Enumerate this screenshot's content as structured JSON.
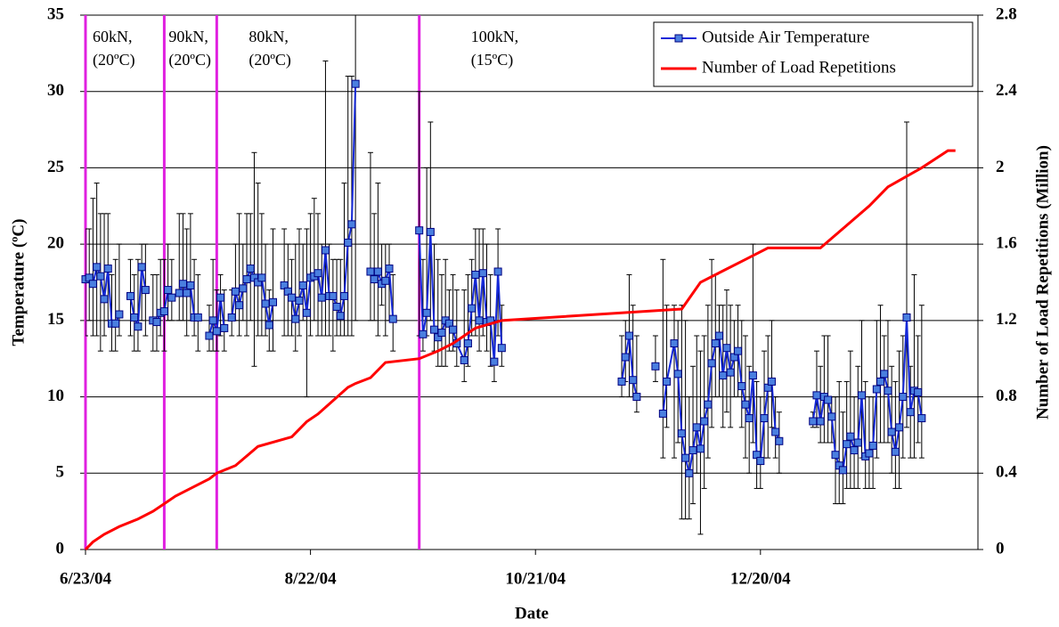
{
  "chart_data": {
    "type": "line",
    "xlabel": "Date",
    "ylabel": "Temperature (ºC)",
    "y2label": "Number of Load Repetitions (Million)",
    "xlim": [
      "6/23/04",
      "2/16/05"
    ],
    "xticks": [
      "6/23/04",
      "8/22/04",
      "10/21/04",
      "12/20/04"
    ],
    "ylim": [
      0,
      35
    ],
    "yticks": [
      0,
      5,
      10,
      15,
      20,
      25,
      30,
      35
    ],
    "y2lim": [
      0,
      2.8
    ],
    "y2ticks": [
      0,
      0.4,
      0.8,
      1.2,
      1.6,
      2,
      2.4,
      2.8
    ],
    "grid": true,
    "legend": "upper right",
    "annotations": [
      {
        "x": "6/23/04",
        "lines": [
          "60kN,",
          "(20ºC)"
        ]
      },
      {
        "x": "7/14/04",
        "lines": [
          "90kN,",
          "(20ºC)"
        ]
      },
      {
        "x": "7/28/04",
        "lines": [
          "80kN,",
          "(20ºC)"
        ]
      },
      {
        "x": "9/20/04",
        "lines": [
          "100kN,",
          "(15ºC)"
        ]
      }
    ],
    "annotation_color": "#e020e0",
    "series": [
      {
        "name": "Outside Air Temperature",
        "color": "#1428d8",
        "marker_color": "#4a7fe0",
        "error_color": "#000000",
        "x": [
          "6/23/04",
          "6/24/04",
          "6/25/04",
          "6/26/04",
          "6/27/04",
          "6/28/04",
          "6/29/04",
          "6/30/04",
          "7/1/04",
          "7/2/04",
          "7/3/04",
          "7/5/04",
          "7/6/04",
          "7/7/04",
          "7/8/04",
          "7/9/04",
          "7/10/04",
          "7/11/04",
          "7/12/04",
          "7/13/04",
          "7/14/04",
          "7/15/04",
          "7/16/04",
          "7/17/04",
          "7/18/04",
          "7/19/04",
          "7/20/04",
          "7/21/04",
          "7/22/04",
          "7/23/04",
          "7/24/04",
          "7/26/04",
          "7/27/04",
          "7/28/04",
          "7/29/04",
          "7/30/04",
          "7/31/04",
          "8/1/04",
          "8/2/04",
          "8/3/04",
          "8/4/04",
          "8/5/04",
          "8/6/04",
          "8/7/04",
          "8/8/04",
          "8/9/04",
          "8/10/04",
          "8/11/04",
          "8/12/04",
          "8/13/04",
          "8/15/04",
          "8/16/04",
          "8/17/04",
          "8/18/04",
          "8/19/04",
          "8/20/04",
          "8/21/04",
          "8/22/04",
          "8/23/04",
          "8/24/04",
          "8/25/04",
          "8/26/04",
          "8/27/04",
          "8/28/04",
          "8/29/04",
          "8/30/04",
          "8/31/04",
          "9/1/04",
          "9/2/04",
          "9/3/04",
          "9/4/04",
          "9/7/04",
          "9/8/04",
          "9/9/04",
          "9/10/04",
          "9/11/04",
          "9/12/04",
          "9/13/04",
          "9/14/04",
          "9/20/04",
          "9/21/04",
          "9/22/04",
          "9/23/04",
          "9/24/04",
          "9/25/04",
          "9/26/04",
          "9/27/04",
          "9/28/04",
          "9/29/04",
          "9/30/04",
          "10/2/04",
          "10/3/04",
          "10/4/04",
          "10/5/04",
          "10/6/04",
          "10/7/04",
          "10/8/04",
          "10/9/04",
          "10/10/04",
          "10/11/04",
          "10/12/04",
          "10/13/04",
          "11/13/04",
          "11/14/04",
          "11/15/04",
          "11/16/04",
          "11/17/04",
          "11/18/04",
          "11/22/04",
          "11/23/04",
          "11/24/04",
          "11/25/04",
          "11/27/04",
          "11/28/04",
          "11/29/04",
          "11/30/04",
          "12/1/04",
          "12/2/04",
          "12/3/04",
          "12/4/04",
          "12/5/04",
          "12/6/04",
          "12/7/04",
          "12/8/04",
          "12/9/04",
          "12/10/04",
          "12/11/04",
          "12/12/04",
          "12/13/04",
          "12/14/04",
          "12/15/04",
          "12/16/04",
          "12/17/04",
          "12/18/04",
          "12/19/04",
          "12/20/04",
          "12/21/04",
          "12/22/04",
          "12/23/04",
          "12/24/04",
          "12/25/04",
          "12/26/04",
          "1/3/05",
          "1/4/05",
          "1/5/05",
          "1/6/05",
          "1/7/05",
          "1/8/05",
          "1/9/05",
          "1/10/05",
          "1/11/05",
          "1/12/05",
          "1/13/05",
          "1/14/05",
          "1/15/05",
          "1/16/05",
          "1/17/05",
          "1/18/05",
          "1/19/05",
          "1/20/05",
          "1/21/05",
          "1/22/05",
          "1/23/05",
          "1/24/05",
          "1/25/05",
          "1/26/05",
          "1/27/05",
          "1/28/05",
          "1/29/05",
          "1/30/05",
          "1/31/05",
          "2/1/05"
        ],
        "values": [
          17.7,
          17.8,
          17.4,
          18.5,
          17.9,
          16.4,
          18.4,
          14.8,
          14.8,
          15.4,
          null,
          16.6,
          15.2,
          14.6,
          18.5,
          17.0,
          null,
          15.0,
          14.9,
          15.5,
          15.6,
          17.0,
          16.5,
          null,
          16.8,
          17.4,
          16.8,
          17.3,
          15.2,
          15.2,
          null,
          14.0,
          15.0,
          14.3,
          16.5,
          14.5,
          null,
          15.2,
          16.9,
          16.0,
          17.1,
          17.7,
          18.4,
          17.8,
          17.5,
          17.8,
          16.1,
          14.7,
          16.2,
          null,
          17.3,
          16.9,
          16.5,
          15.1,
          16.3,
          17.3,
          15.5,
          17.8,
          17.9,
          18.1,
          16.5,
          19.6,
          16.6,
          16.6,
          15.9,
          15.3,
          16.6,
          20.1,
          21.3,
          30.5,
          null,
          18.2,
          17.7,
          18.2,
          17.4,
          17.6,
          18.4,
          15.1,
          null,
          20.9,
          14.1,
          15.5,
          20.8,
          14.4,
          13.9,
          14.2,
          15.0,
          14.8,
          14.4,
          13.5,
          12.4,
          13.5,
          15.8,
          18.0,
          15.0,
          18.1,
          14.9,
          15.0,
          12.3,
          18.2,
          13.2,
          null,
          11.0,
          12.6,
          14.0,
          11.1,
          10.0,
          null,
          12.0,
          null,
          8.9,
          11.0,
          13.5,
          11.5,
          7.6,
          6.0,
          5.0,
          6.5,
          8.0,
          6.6,
          8.4,
          9.5,
          12.2,
          13.5,
          14.0,
          11.4,
          13.2,
          11.6,
          12.6,
          13.0,
          10.7,
          9.5,
          8.6,
          11.4,
          6.2,
          5.8,
          8.6,
          10.6,
          11.0,
          7.7,
          7.1,
          null,
          8.4,
          10.1,
          8.4,
          10.0,
          9.8,
          8.7,
          6.2,
          5.5,
          5.2,
          6.9,
          7.4,
          6.5,
          7.0,
          10.1,
          6.1,
          6.3,
          6.8,
          10.5,
          11.0,
          11.5,
          10.4,
          7.7,
          6.4,
          8.0,
          10.0,
          15.2,
          9.0,
          10.4,
          10.3,
          8.6
        ],
        "low": [
          14,
          15,
          14,
          14,
          13,
          14,
          15,
          13,
          13,
          14,
          null,
          14,
          13,
          13,
          15,
          14,
          null,
          13,
          13,
          14,
          13,
          15,
          15,
          null,
          15,
          15,
          14,
          15,
          14,
          13,
          null,
          13,
          13,
          13,
          14,
          13,
          null,
          14,
          15,
          14,
          15,
          14,
          15,
          12,
          14,
          14,
          14,
          13,
          13,
          null,
          14,
          14,
          14,
          13,
          14,
          15,
          10,
          14,
          15,
          14,
          14,
          14,
          14,
          13,
          14,
          14,
          14,
          14,
          14,
          15,
          null,
          15,
          15,
          14,
          16,
          14,
          15,
          13,
          null,
          14,
          13,
          14,
          15,
          13,
          12,
          12,
          12,
          13,
          13,
          12,
          11,
          12,
          14,
          14,
          13,
          14,
          13,
          12,
          11,
          14,
          12,
          null,
          10,
          11,
          10,
          10,
          9,
          null,
          11,
          null,
          6,
          8,
          6,
          7,
          2,
          2,
          2,
          3,
          5,
          1,
          4,
          6,
          8,
          10,
          10,
          8,
          9,
          8,
          10,
          10,
          8,
          6,
          5,
          7,
          4,
          4,
          6,
          6,
          8,
          6,
          5,
          null,
          8,
          8,
          7,
          7,
          7,
          7,
          3,
          3,
          3,
          4,
          4,
          4,
          4,
          6,
          4,
          4,
          4,
          6,
          7,
          7,
          7,
          5,
          4,
          4,
          6,
          8,
          6,
          6,
          7,
          6
        ],
        "high": [
          21,
          21,
          23,
          24,
          22,
          22,
          22,
          18,
          19,
          20,
          null,
          19,
          18,
          19,
          20,
          20,
          null,
          18,
          18,
          19,
          19,
          20,
          19,
          null,
          22,
          22,
          21,
          22,
          19,
          18,
          null,
          16,
          19,
          17,
          18,
          17,
          null,
          17,
          20,
          22,
          20,
          22,
          22,
          26,
          24,
          22,
          20,
          17,
          21,
          null,
          21,
          20,
          19,
          20,
          21,
          20,
          21,
          22,
          23,
          22,
          20,
          32,
          20,
          19,
          19,
          19,
          24,
          31,
          31,
          35,
          null,
          26,
          22,
          24,
          20,
          20,
          20,
          18,
          null,
          30,
          19,
          25,
          28,
          20,
          19,
          18,
          19,
          17,
          18,
          17,
          17,
          18,
          19,
          21,
          21,
          21,
          20,
          18,
          15,
          21,
          16,
          null,
          14,
          15,
          18,
          16,
          14,
          null,
          14,
          null,
          19,
          16,
          16,
          15,
          16,
          15,
          10,
          12,
          14,
          13,
          14,
          16,
          19,
          18,
          16,
          16,
          17,
          16,
          15,
          16,
          15,
          14,
          12,
          20,
          11,
          10,
          13,
          14,
          15,
          10,
          9,
          null,
          9,
          13,
          12,
          14,
          14,
          10,
          10,
          11,
          9,
          11,
          13,
          10,
          12,
          15,
          11,
          10,
          10,
          15,
          16,
          14,
          15,
          12,
          11,
          13,
          14,
          28,
          12,
          18,
          14,
          16
        ]
      },
      {
        "name": "Number of Load Repetitions",
        "color": "#ff0000",
        "axis": "y2",
        "x": [
          "6/23/04",
          "6/25/04",
          "6/28/04",
          "7/2/04",
          "7/7/04",
          "7/11/04",
          "7/14/04",
          "7/17/04",
          "7/21/04",
          "7/26/04",
          "7/28/04",
          "8/2/04",
          "8/8/04",
          "8/17/04",
          "8/21/04",
          "8/24/04",
          "8/28/04",
          "9/1/04",
          "9/3/04",
          "9/7/04",
          "9/11/04",
          "9/20/04",
          "9/25/04",
          "9/29/04",
          "10/5/04",
          "10/12/04",
          "11/29/04",
          "12/4/04",
          "12/10/04",
          "12/16/04",
          "12/22/04",
          "1/5/05",
          "1/18/05",
          "1/23/05",
          "2/1/05",
          "2/8/05",
          "2/10/05"
        ],
        "values": [
          0,
          0.04,
          0.08,
          0.12,
          0.16,
          0.2,
          0.24,
          0.28,
          0.32,
          0.37,
          0.4,
          0.44,
          0.54,
          0.59,
          0.67,
          0.71,
          0.78,
          0.85,
          0.87,
          0.9,
          0.98,
          1.0,
          1.04,
          1.08,
          1.16,
          1.2,
          1.26,
          1.4,
          1.46,
          1.52,
          1.58,
          1.58,
          1.8,
          1.9,
          2.0,
          2.09,
          2.09
        ]
      }
    ]
  }
}
